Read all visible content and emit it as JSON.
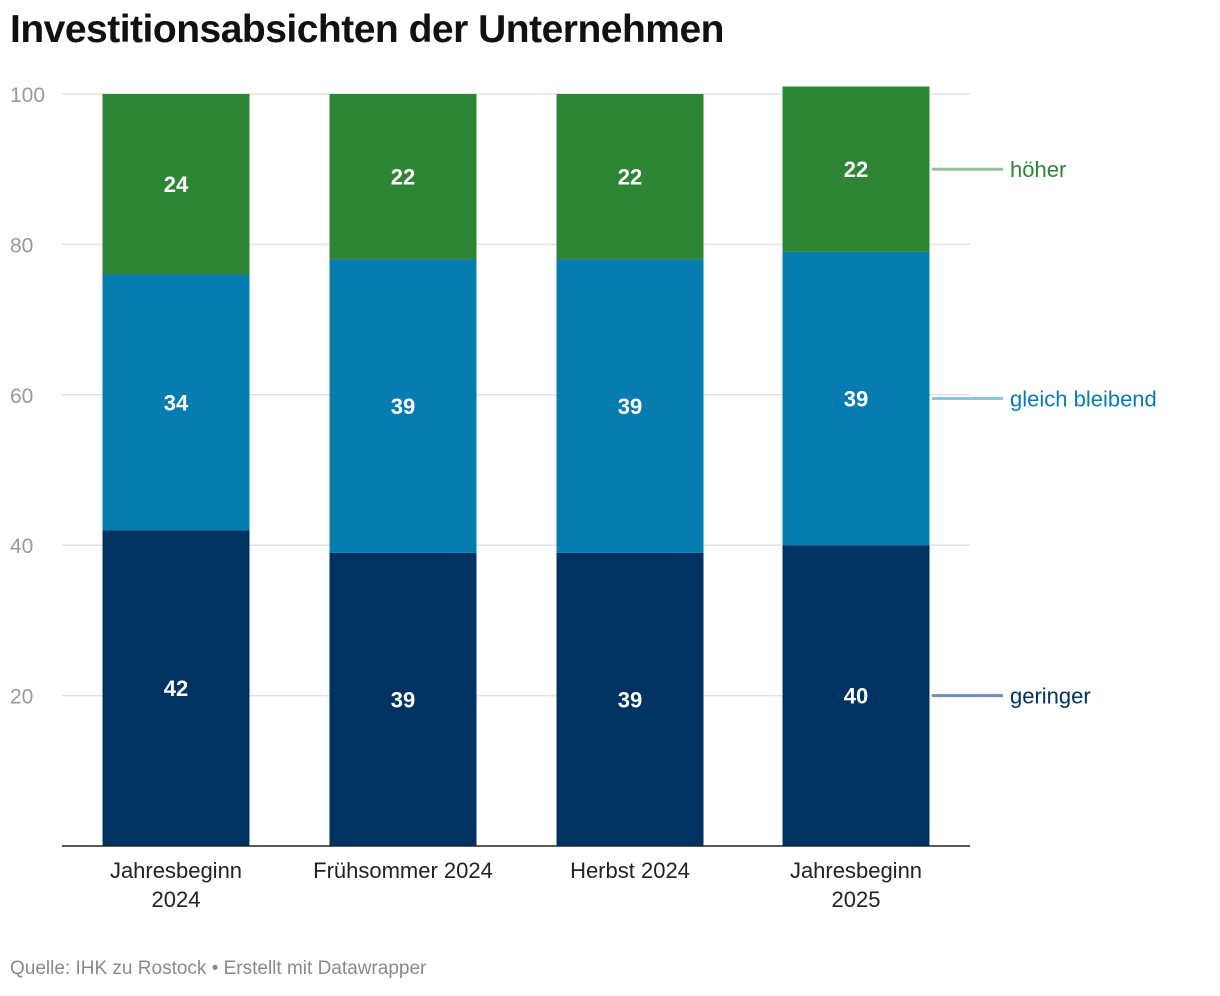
{
  "title": "Investitionsabsichten der Unternehmen",
  "footer": "Quelle: IHK zu Rostock • Erstellt mit Datawrapper",
  "chart_data": {
    "type": "bar",
    "stacked": true,
    "categories": [
      [
        "Jahresbeginn",
        "2024"
      ],
      [
        "Frühsommer 2024"
      ],
      [
        "Herbst 2024"
      ],
      [
        "Jahresbeginn",
        "2025"
      ]
    ],
    "series": [
      {
        "name": "geringer",
        "values": [
          42,
          39,
          39,
          40
        ],
        "color": "#003362",
        "label_color": "#003362",
        "line_color": "#6f8fb0"
      },
      {
        "name": "gleich bleibend",
        "values": [
          34,
          39,
          39,
          39
        ],
        "color": "#077cb1",
        "label_color": "#077cb1",
        "line_color": "#8fc4e0"
      },
      {
        "name": "höher",
        "values": [
          24,
          22,
          22,
          22
        ],
        "color": "#2e8535",
        "label_color": "#2e8535",
        "line_color": "#93c298"
      }
    ],
    "yticks": [
      20,
      40,
      60,
      80,
      100
    ],
    "ylim": [
      0,
      100
    ],
    "grid": true,
    "legend": "right, inline labels"
  }
}
